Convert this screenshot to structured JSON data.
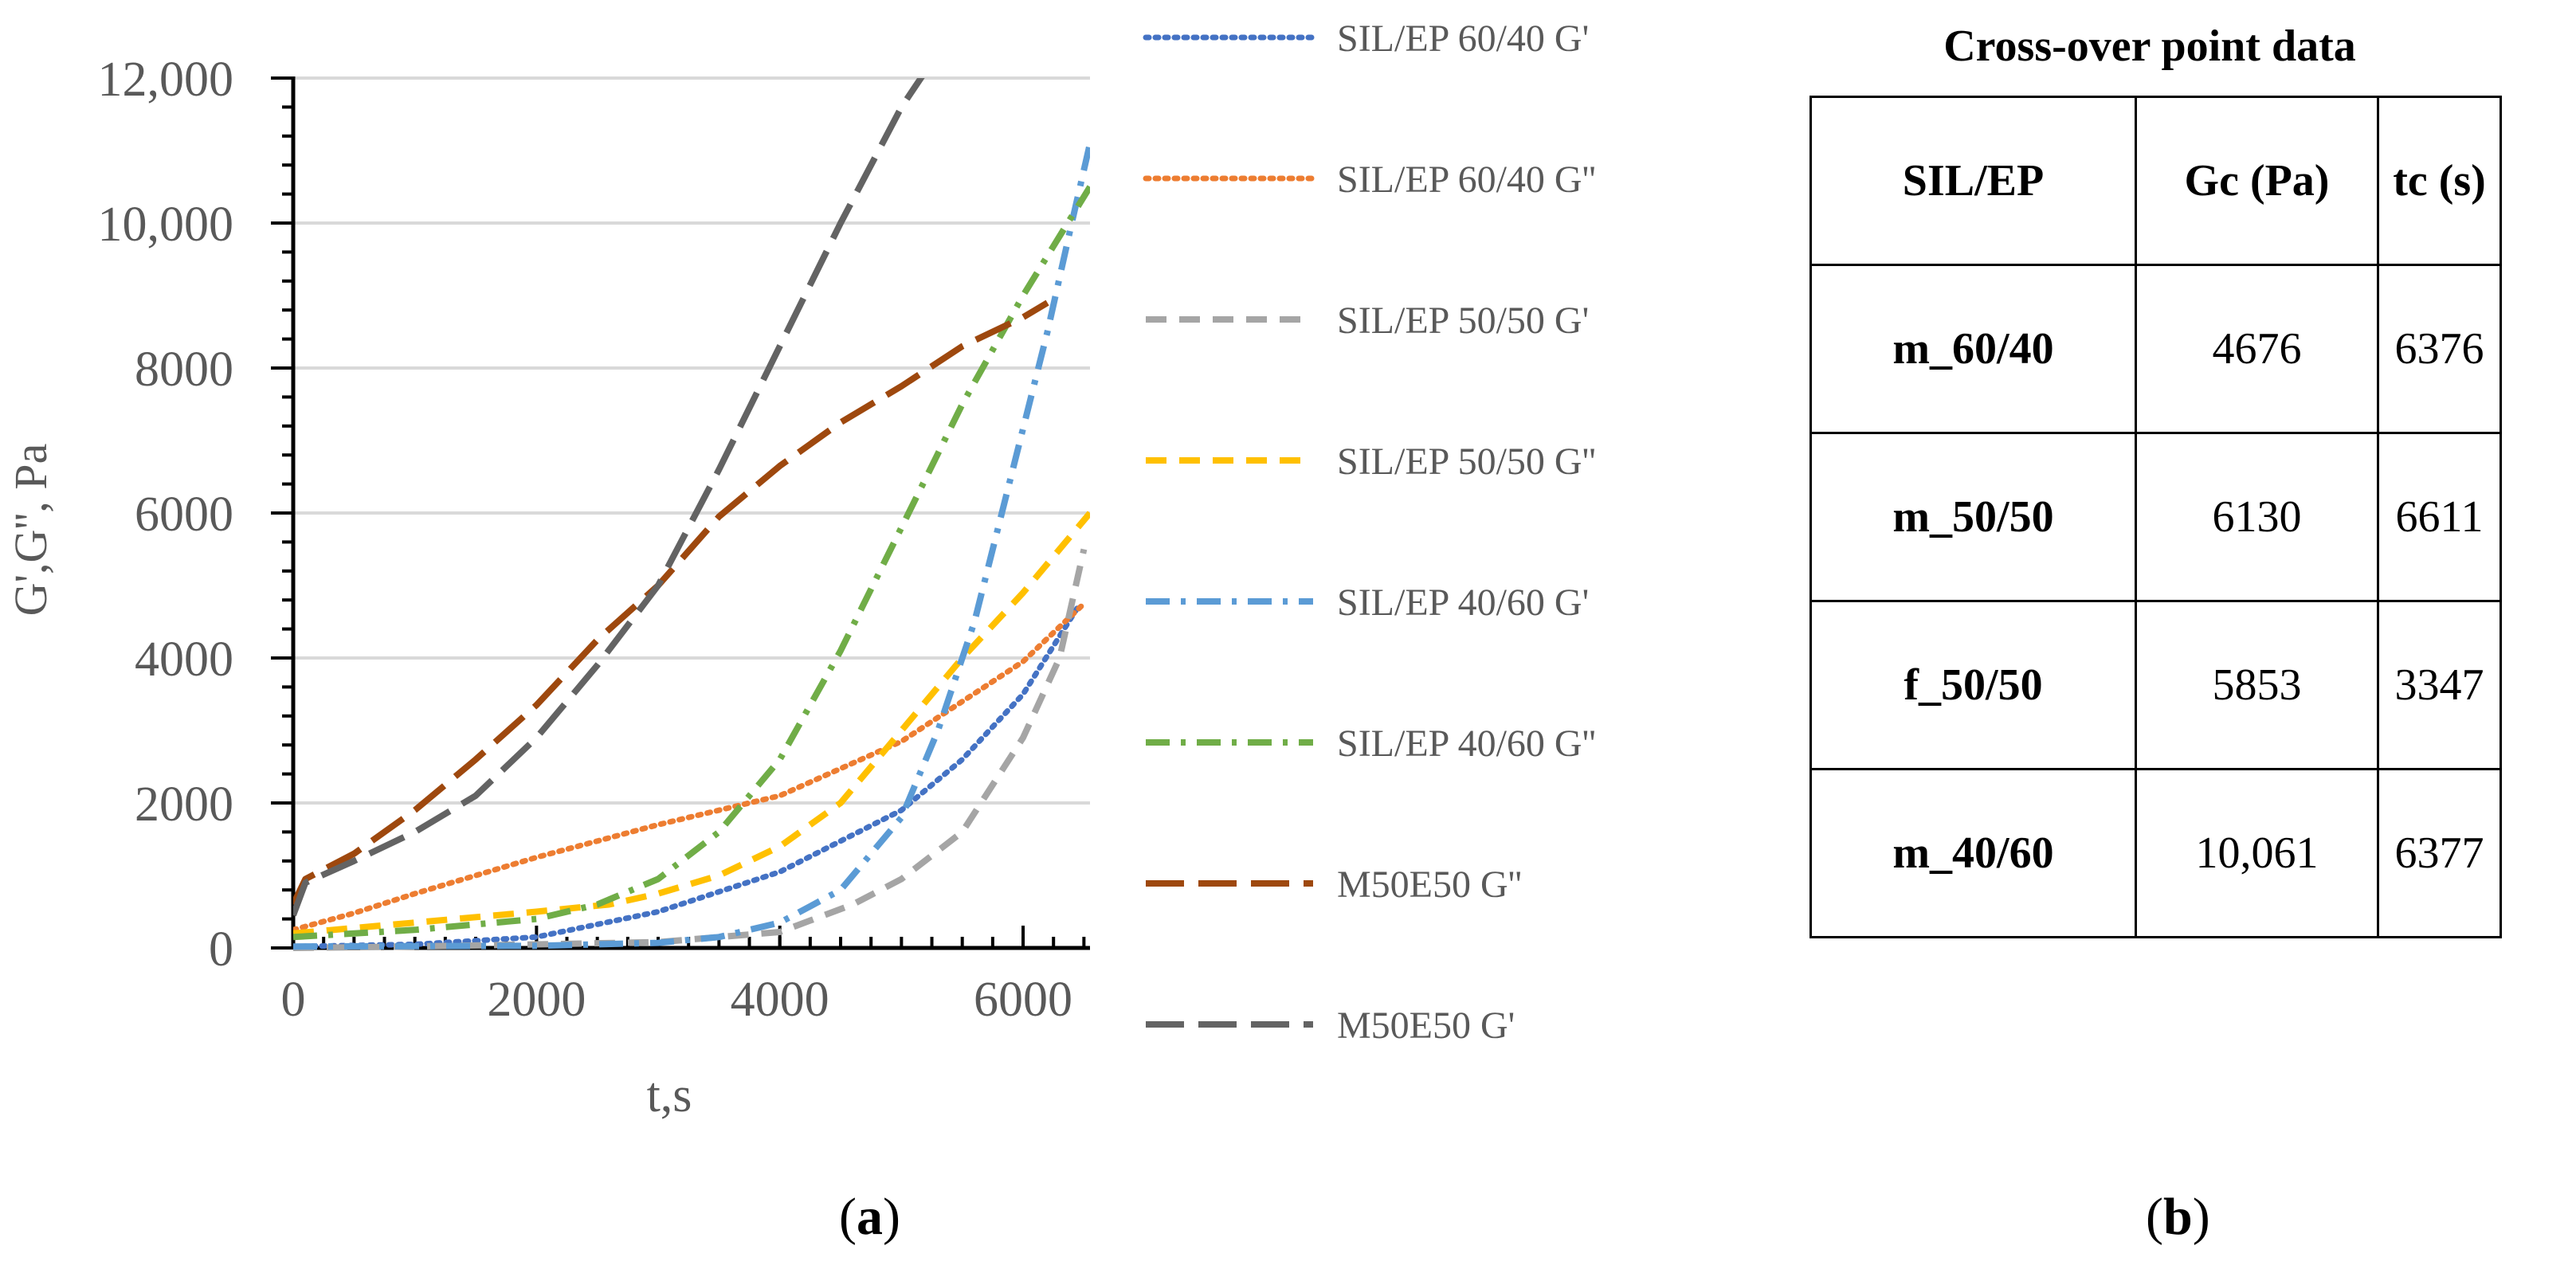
{
  "chart_data": {
    "type": "line",
    "xlabel": "t,s",
    "ylabel": "G',G'', Pa",
    "xlim": [
      0,
      6550
    ],
    "ylim": [
      0,
      12000
    ],
    "x_ticks": [
      0,
      2000,
      4000,
      6000
    ],
    "x_tick_labels": [
      "0",
      "2000",
      "4000",
      "6000"
    ],
    "y_ticks": [
      0,
      2000,
      4000,
      6000,
      8000,
      10000,
      12000
    ],
    "y_tick_labels": [
      "0",
      "2000",
      "4000",
      "6000",
      "8000",
      "10,000",
      "12,000"
    ],
    "series": [
      {
        "name": "SIL/EP 60/40 G'",
        "color": "#4472C4",
        "style": "dotted",
        "x": [
          0,
          1000,
          2000,
          3000,
          4000,
          5000,
          5500,
          6000,
          6450
        ],
        "y": [
          20,
          50,
          150,
          500,
          1050,
          1900,
          2600,
          3500,
          4700
        ]
      },
      {
        "name": "SIL/EP 60/40 G''",
        "color": "#ED7D31",
        "style": "dotted",
        "x": [
          0,
          500,
          1000,
          2000,
          3000,
          4000,
          5000,
          5500,
          6000,
          6500
        ],
        "y": [
          250,
          480,
          750,
          1250,
          1700,
          2100,
          2850,
          3400,
          3950,
          4750
        ]
      },
      {
        "name": "SIL/EP 50/50 G'",
        "color": "#A5A5A5",
        "style": "dashed",
        "x": [
          0,
          1000,
          2000,
          3000,
          4000,
          4600,
          5000,
          5500,
          6000,
          6300,
          6500
        ],
        "y": [
          0,
          20,
          50,
          80,
          220,
          600,
          950,
          1600,
          2900,
          4000,
          5500
        ]
      },
      {
        "name": "SIL/EP 50/50 G''",
        "color": "#FFC000",
        "style": "dashed",
        "x": [
          0,
          1000,
          2000,
          2600,
          3000,
          3500,
          4000,
          4500,
          5000,
          5500,
          6000,
          6550
        ],
        "y": [
          200,
          350,
          500,
          600,
          750,
          1000,
          1400,
          2000,
          3000,
          4000,
          4900,
          6000
        ]
      },
      {
        "name": "SIL/EP 40/60 G'",
        "color": "#5B9BD5",
        "style": "dashdot",
        "x": [
          0,
          2000,
          3000,
          3500,
          4000,
          4500,
          5000,
          5300,
          5600,
          5900,
          6200,
          6400,
          6550
        ],
        "y": [
          20,
          30,
          70,
          150,
          350,
          800,
          1800,
          3000,
          4500,
          6500,
          8500,
          10000,
          11100
        ]
      },
      {
        "name": "SIL/EP 40/60 G''",
        "color": "#70AD47",
        "style": "dashdot",
        "x": [
          0,
          1000,
          2000,
          2500,
          3000,
          3500,
          4000,
          4500,
          5000,
          5500,
          6000,
          6550
        ],
        "y": [
          150,
          250,
          400,
          600,
          950,
          1600,
          2600,
          4100,
          5800,
          7500,
          9000,
          10500
        ]
      },
      {
        "name": "M50E50 G''",
        "color": "#9E480E",
        "style": "longdash",
        "x": [
          0,
          100,
          500,
          1000,
          1500,
          2000,
          2500,
          3000,
          3500,
          4000,
          4500,
          5000,
          5500,
          6000,
          6200
        ],
        "y": [
          600,
          950,
          1300,
          1900,
          2600,
          3350,
          4250,
          5000,
          5950,
          6650,
          7250,
          7750,
          8300,
          8700,
          8900
        ]
      },
      {
        "name": "M50E50 G'",
        "color": "#636363",
        "style": "longdash",
        "x": [
          0,
          100,
          500,
          1000,
          1500,
          2000,
          2500,
          3000,
          3500,
          4000,
          4500,
          5000,
          5200
        ],
        "y": [
          450,
          900,
          1200,
          1600,
          2100,
          2900,
          3900,
          5000,
          6600,
          8300,
          10000,
          11600,
          12100
        ]
      }
    ]
  },
  "table": {
    "title": "Cross-over point data",
    "headers": [
      "SIL/EP",
      "Gc (Pa)",
      "tc (s)"
    ],
    "rows": [
      [
        "m_60/40",
        "4676",
        "6376"
      ],
      [
        "m_50/50",
        "6130",
        "6611"
      ],
      [
        "f_50/50",
        "5853",
        "3347"
      ],
      [
        "m_40/60",
        "10,061",
        "6377"
      ]
    ]
  },
  "labels": {
    "a_open": "(",
    "a_letter": "a",
    "a_close": ")",
    "b_open": "(",
    "b_letter": "b",
    "b_close": ")"
  }
}
